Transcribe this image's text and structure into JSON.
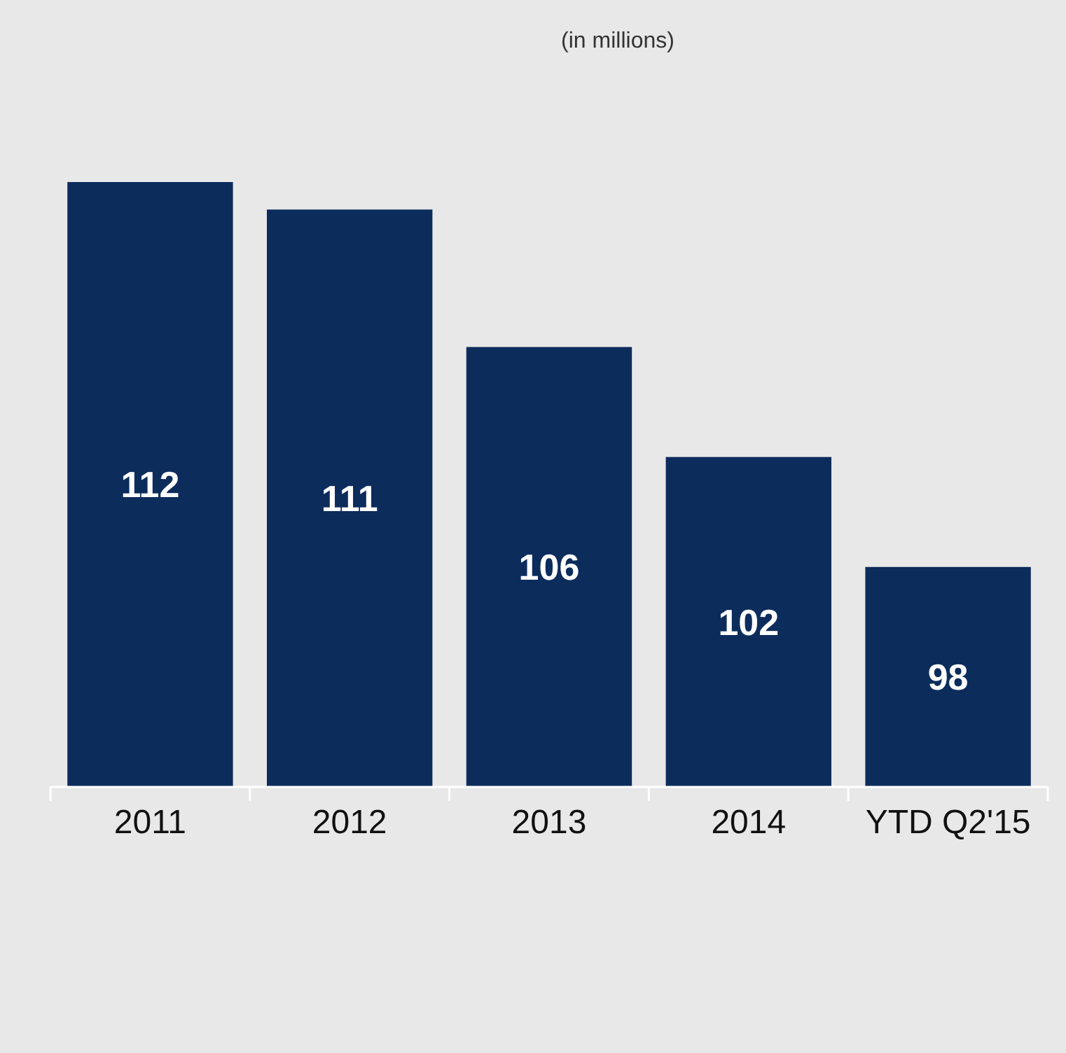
{
  "chart_data": {
    "type": "bar",
    "title": "(in millions)",
    "categories": [
      "2011",
      "2012",
      "2013",
      "2014",
      "YTD Q2'15"
    ],
    "values": [
      112,
      111,
      106,
      102,
      98
    ],
    "color": "#0c2c5c",
    "ylim": [
      90,
      112
    ],
    "data_labels": true
  }
}
